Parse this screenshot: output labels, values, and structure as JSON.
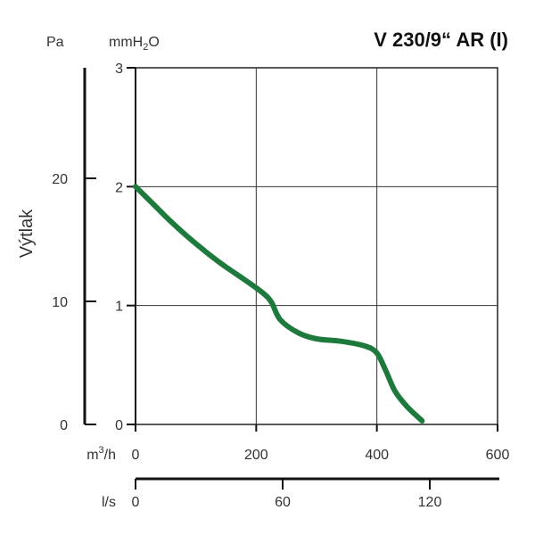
{
  "chart_data": {
    "type": "line",
    "title": "V 230/9“ AR (I)",
    "ylabel": "Výtlak",
    "units": {
      "pa": "Pa",
      "mmh2o_prefix": "mmH",
      "mmh2o_sub": "2",
      "mmh2o_suffix": "O",
      "m3h_prefix": "m",
      "m3h_sup": "3",
      "m3h_suffix": "/h",
      "ls": "l/s"
    },
    "x_m3h": {
      "ticks": [
        "0",
        "200",
        "400",
        "600"
      ],
      "tick_values": [
        0,
        200,
        400,
        600
      ],
      "xlim": [
        0,
        600
      ]
    },
    "y_mmh2o": {
      "ticks": [
        "3",
        "2",
        "1",
        "0"
      ],
      "tick_values": [
        3,
        2,
        1,
        0
      ],
      "ylim": [
        0,
        3
      ]
    },
    "y_pa": {
      "ticks": [
        "20",
        "10",
        "0"
      ],
      "tick_values": [
        20,
        10,
        0
      ]
    },
    "x_ls": {
      "ticks": [
        "0",
        "60",
        "120"
      ],
      "tick_values": [
        0,
        60,
        120
      ]
    },
    "grid": true,
    "line_color": "#1e7a3c",
    "series": [
      {
        "x": [
          0,
          30,
          60,
          100,
          140,
          180,
          210,
          225,
          240,
          270,
          300,
          340,
          380,
          400,
          415,
          430,
          450,
          475
        ],
        "y": [
          2.0,
          1.85,
          1.7,
          1.52,
          1.36,
          1.22,
          1.11,
          1.03,
          0.88,
          0.77,
          0.72,
          0.7,
          0.66,
          0.6,
          0.45,
          0.28,
          0.15,
          0.03
        ]
      }
    ]
  }
}
